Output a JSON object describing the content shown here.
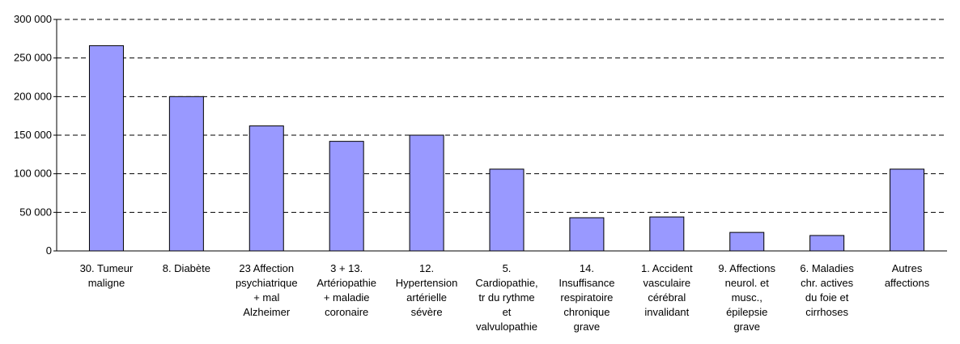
{
  "chart_data": {
    "type": "bar",
    "categories": [
      [
        "30. Tumeur",
        "maligne"
      ],
      [
        "8. Diabète"
      ],
      [
        "23 Affection",
        "psychiatrique",
        "+ mal",
        "Alzheimer"
      ],
      [
        "3 + 13.",
        "Artériopathie",
        "+ maladie",
        "coronaire"
      ],
      [
        "12.",
        "Hypertension",
        "artérielle",
        "sévère"
      ],
      [
        "5.",
        "Cardiopathie,",
        "tr du rythme",
        "et",
        "valvulopathie"
      ],
      [
        "14.",
        "Insuffisance",
        "respiratoire",
        "chronique",
        "grave"
      ],
      [
        "1. Accident",
        "vasculaire",
        "cérébral",
        "invalidant"
      ],
      [
        "9. Affections",
        "neurol. et",
        "musc.,",
        "épilepsie",
        "grave"
      ],
      [
        "6. Maladies",
        "chr. actives",
        "du foie et",
        "cirrhoses"
      ],
      [
        "Autres",
        "affections"
      ]
    ],
    "values": [
      266000,
      200000,
      162000,
      142000,
      150000,
      106000,
      43000,
      44000,
      24000,
      20000,
      106000
    ],
    "color": "#9999ff",
    "ylim": [
      0,
      300000
    ],
    "yticks": [
      0,
      {
        "value": 50000,
        "label": "50 000"
      },
      {
        "value": 100000,
        "label": "100 000"
      },
      {
        "value": 150000,
        "label": "150 000"
      },
      {
        "value": 200000,
        "label": "200 000"
      },
      {
        "value": 250000,
        "label": "250 000"
      },
      {
        "value": 300000,
        "label": "300 000"
      }
    ],
    "grid": true
  }
}
